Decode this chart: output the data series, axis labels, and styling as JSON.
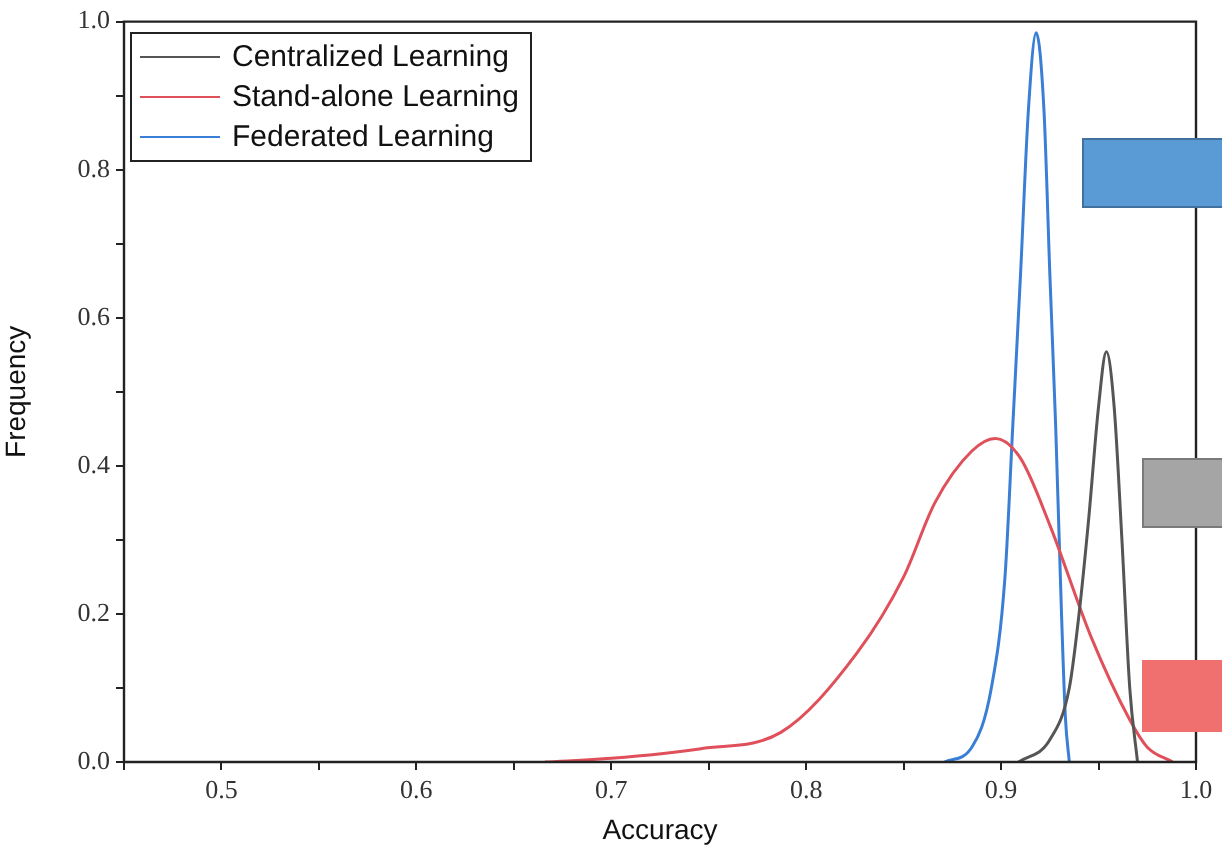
{
  "chart_data": {
    "type": "line",
    "xlabel": "Accuracy",
    "ylabel": "Frequency",
    "legend": "top left",
    "marker": "none",
    "line_style": "solid",
    "xlim": [
      0.45,
      1.0
    ],
    "ylim": [
      0,
      1.0
    ],
    "xticks": [
      {
        "value": 0.45,
        "label": null
      },
      {
        "value": 0.5,
        "label": "0.5"
      },
      {
        "value": 0.55,
        "label": null
      },
      {
        "value": 0.6,
        "label": "0.6"
      },
      {
        "value": 0.65,
        "label": null
      },
      {
        "value": 0.7,
        "label": "0.7"
      },
      {
        "value": 0.75,
        "label": null
      },
      {
        "value": 0.8,
        "label": "0.8"
      },
      {
        "value": 0.85,
        "label": null
      },
      {
        "value": 0.9,
        "label": "0.9"
      },
      {
        "value": 0.95,
        "label": null
      },
      {
        "value": 1.0,
        "label": "1.0"
      }
    ],
    "yticks": [
      {
        "value": 0,
        "label": "0.0"
      },
      {
        "value": 0.1,
        "label": null
      },
      {
        "value": 0.2,
        "label": "0.2"
      },
      {
        "value": 0.3,
        "label": null
      },
      {
        "value": 0.4,
        "label": "0.4"
      },
      {
        "value": 0.5,
        "label": null
      },
      {
        "value": 0.6,
        "label": "0.6"
      },
      {
        "value": 0.7,
        "label": null
      },
      {
        "value": 0.8,
        "label": "0.8"
      },
      {
        "value": 0.9,
        "label": null
      },
      {
        "value": 1.0,
        "label": "1.0"
      }
    ],
    "series": [
      {
        "name": "Centralized Learning",
        "color": "#555555",
        "x": [
          0.909,
          0.925,
          0.935,
          0.94,
          0.945,
          0.95,
          0.954,
          0.958,
          0.962,
          0.966,
          0.97
        ],
        "values": [
          0,
          0.03,
          0.1,
          0.2,
          0.33,
          0.48,
          0.554,
          0.48,
          0.3,
          0.1,
          0
        ]
      },
      {
        "name": "Stand-alone Learning",
        "color": "#e0505a",
        "x": [
          0.666,
          0.7,
          0.746,
          0.787,
          0.826,
          0.85,
          0.866,
          0.885,
          0.897,
          0.91,
          0.925,
          0.946,
          0.966,
          0.975,
          0.988
        ],
        "values": [
          0,
          0.005,
          0.018,
          0.04,
          0.147,
          0.25,
          0.35,
          0.42,
          0.437,
          0.41,
          0.32,
          0.17,
          0.057,
          0.02,
          0
        ]
      },
      {
        "name": "Federated Learning",
        "color": "#3a7fd5",
        "x": [
          0.871,
          0.885,
          0.895,
          0.902,
          0.906,
          0.91,
          0.914,
          0.918,
          0.922,
          0.925,
          0.928,
          0.931,
          0.933,
          0.935
        ],
        "values": [
          0,
          0.02,
          0.1,
          0.25,
          0.454,
          0.66,
          0.88,
          0.985,
          0.88,
          0.66,
          0.454,
          0.2,
          0.06,
          0
        ]
      }
    ]
  }
}
